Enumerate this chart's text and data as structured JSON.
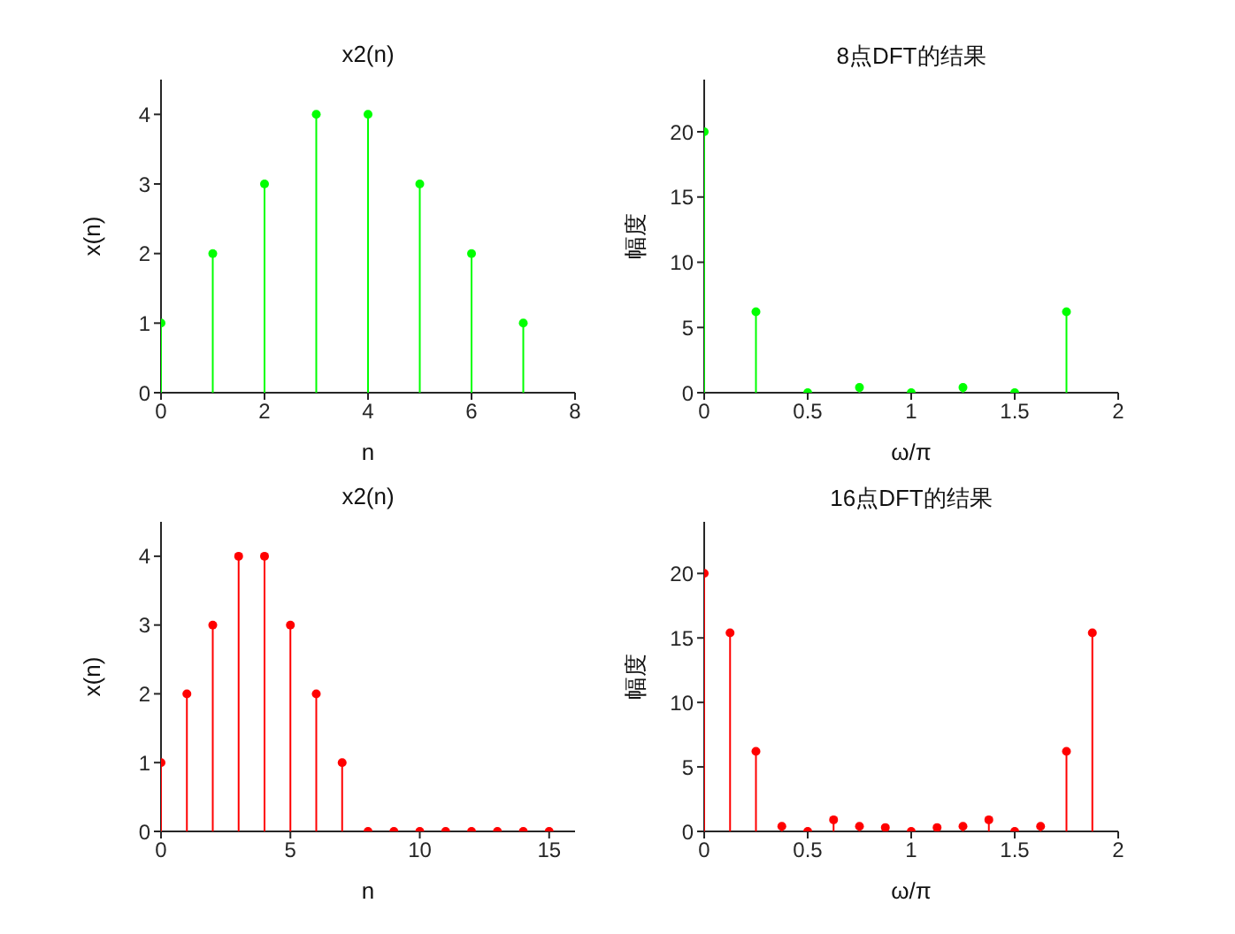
{
  "chart_data": [
    {
      "type": "lollipop",
      "title": "x2(n)",
      "xlabel": "n",
      "ylabel": "x(n)",
      "x": [
        0,
        1,
        2,
        3,
        4,
        5,
        6,
        7
      ],
      "values": [
        1,
        2,
        3,
        4,
        4,
        3,
        2,
        1
      ],
      "color": "#00ff00",
      "xlim": [
        0,
        8
      ],
      "xticks": [
        0,
        2,
        4,
        6,
        8
      ],
      "ylim": [
        0,
        4.5
      ],
      "yticks": [
        0,
        1,
        2,
        3,
        4
      ],
      "marker": "circle",
      "grid": false
    },
    {
      "type": "lollipop",
      "title": "8点DFT的结果",
      "xlabel": "ω/π",
      "ylabel": "幅度",
      "x": [
        0,
        0.25,
        0.5,
        0.75,
        1,
        1.25,
        1.5,
        1.75
      ],
      "values": [
        20,
        6.2,
        0,
        0.4,
        0,
        0.4,
        0,
        6.2
      ],
      "color": "#00ff00",
      "xlim": [
        0,
        2
      ],
      "xticks": [
        0,
        0.5,
        1,
        1.5,
        2
      ],
      "ylim": [
        0,
        24
      ],
      "yticks": [
        0,
        5,
        10,
        15,
        20
      ],
      "marker": "circle",
      "grid": false
    },
    {
      "type": "lollipop",
      "title": "x2(n)",
      "xlabel": "n",
      "ylabel": "x(n)",
      "x": [
        0,
        1,
        2,
        3,
        4,
        5,
        6,
        7,
        8,
        9,
        10,
        11,
        12,
        13,
        14,
        15
      ],
      "values": [
        1,
        2,
        3,
        4,
        4,
        3,
        2,
        1,
        0,
        0,
        0,
        0,
        0,
        0,
        0,
        0
      ],
      "color": "#ff0000",
      "xlim": [
        0,
        16
      ],
      "xticks": [
        0,
        5,
        10,
        15
      ],
      "ylim": [
        0,
        4.5
      ],
      "yticks": [
        0,
        1,
        2,
        3,
        4
      ],
      "marker": "circle",
      "grid": false
    },
    {
      "type": "lollipop",
      "title": "16点DFT的结果",
      "xlabel": "ω/π",
      "ylabel": "幅度",
      "x": [
        0,
        0.125,
        0.25,
        0.375,
        0.5,
        0.625,
        0.75,
        0.875,
        1,
        1.125,
        1.25,
        1.375,
        1.5,
        1.625,
        1.75,
        1.875
      ],
      "values": [
        20,
        15.4,
        6.2,
        0.4,
        0,
        0.9,
        0.4,
        0.3,
        0,
        0.3,
        0.4,
        0.9,
        0,
        0.4,
        6.2,
        15.4
      ],
      "color": "#ff0000",
      "xlim": [
        0,
        2
      ],
      "xticks": [
        0,
        0.5,
        1,
        1.5,
        2
      ],
      "ylim": [
        0,
        24
      ],
      "yticks": [
        0,
        5,
        10,
        15,
        20
      ],
      "marker": "circle",
      "grid": false
    }
  ]
}
